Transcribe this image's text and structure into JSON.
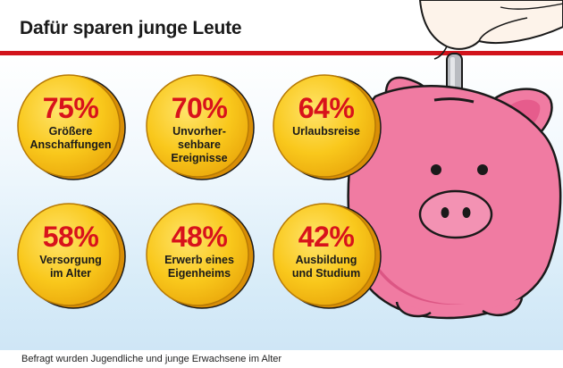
{
  "header": {
    "title": "Dafür sparen junge Leute"
  },
  "footer": {
    "note": "Befragt wurden Jugendliche und junge Erwachsene im Alter"
  },
  "colors": {
    "accent_red": "#d2141c",
    "coin_gold": "#f7c21b",
    "pig_pink": "#f07ba2",
    "sky_blue": "#d6ebf8"
  },
  "chart_data": {
    "type": "bar",
    "title": "Dafür sparen junge Leute",
    "categories": [
      "Größere\nAnschaffungen",
      "Unvorher-\nsehbare\nEreignisse",
      "Urlaubsreise",
      "Versorgung\nim Alter",
      "Erwerb eines\nEigenheims",
      "Ausbildung\nund Studium"
    ],
    "values": [
      75,
      70,
      64,
      58,
      48,
      42
    ],
    "value_labels": [
      "75%",
      "70%",
      "64%",
      "58%",
      "48%",
      "42%"
    ],
    "unit": "%"
  }
}
